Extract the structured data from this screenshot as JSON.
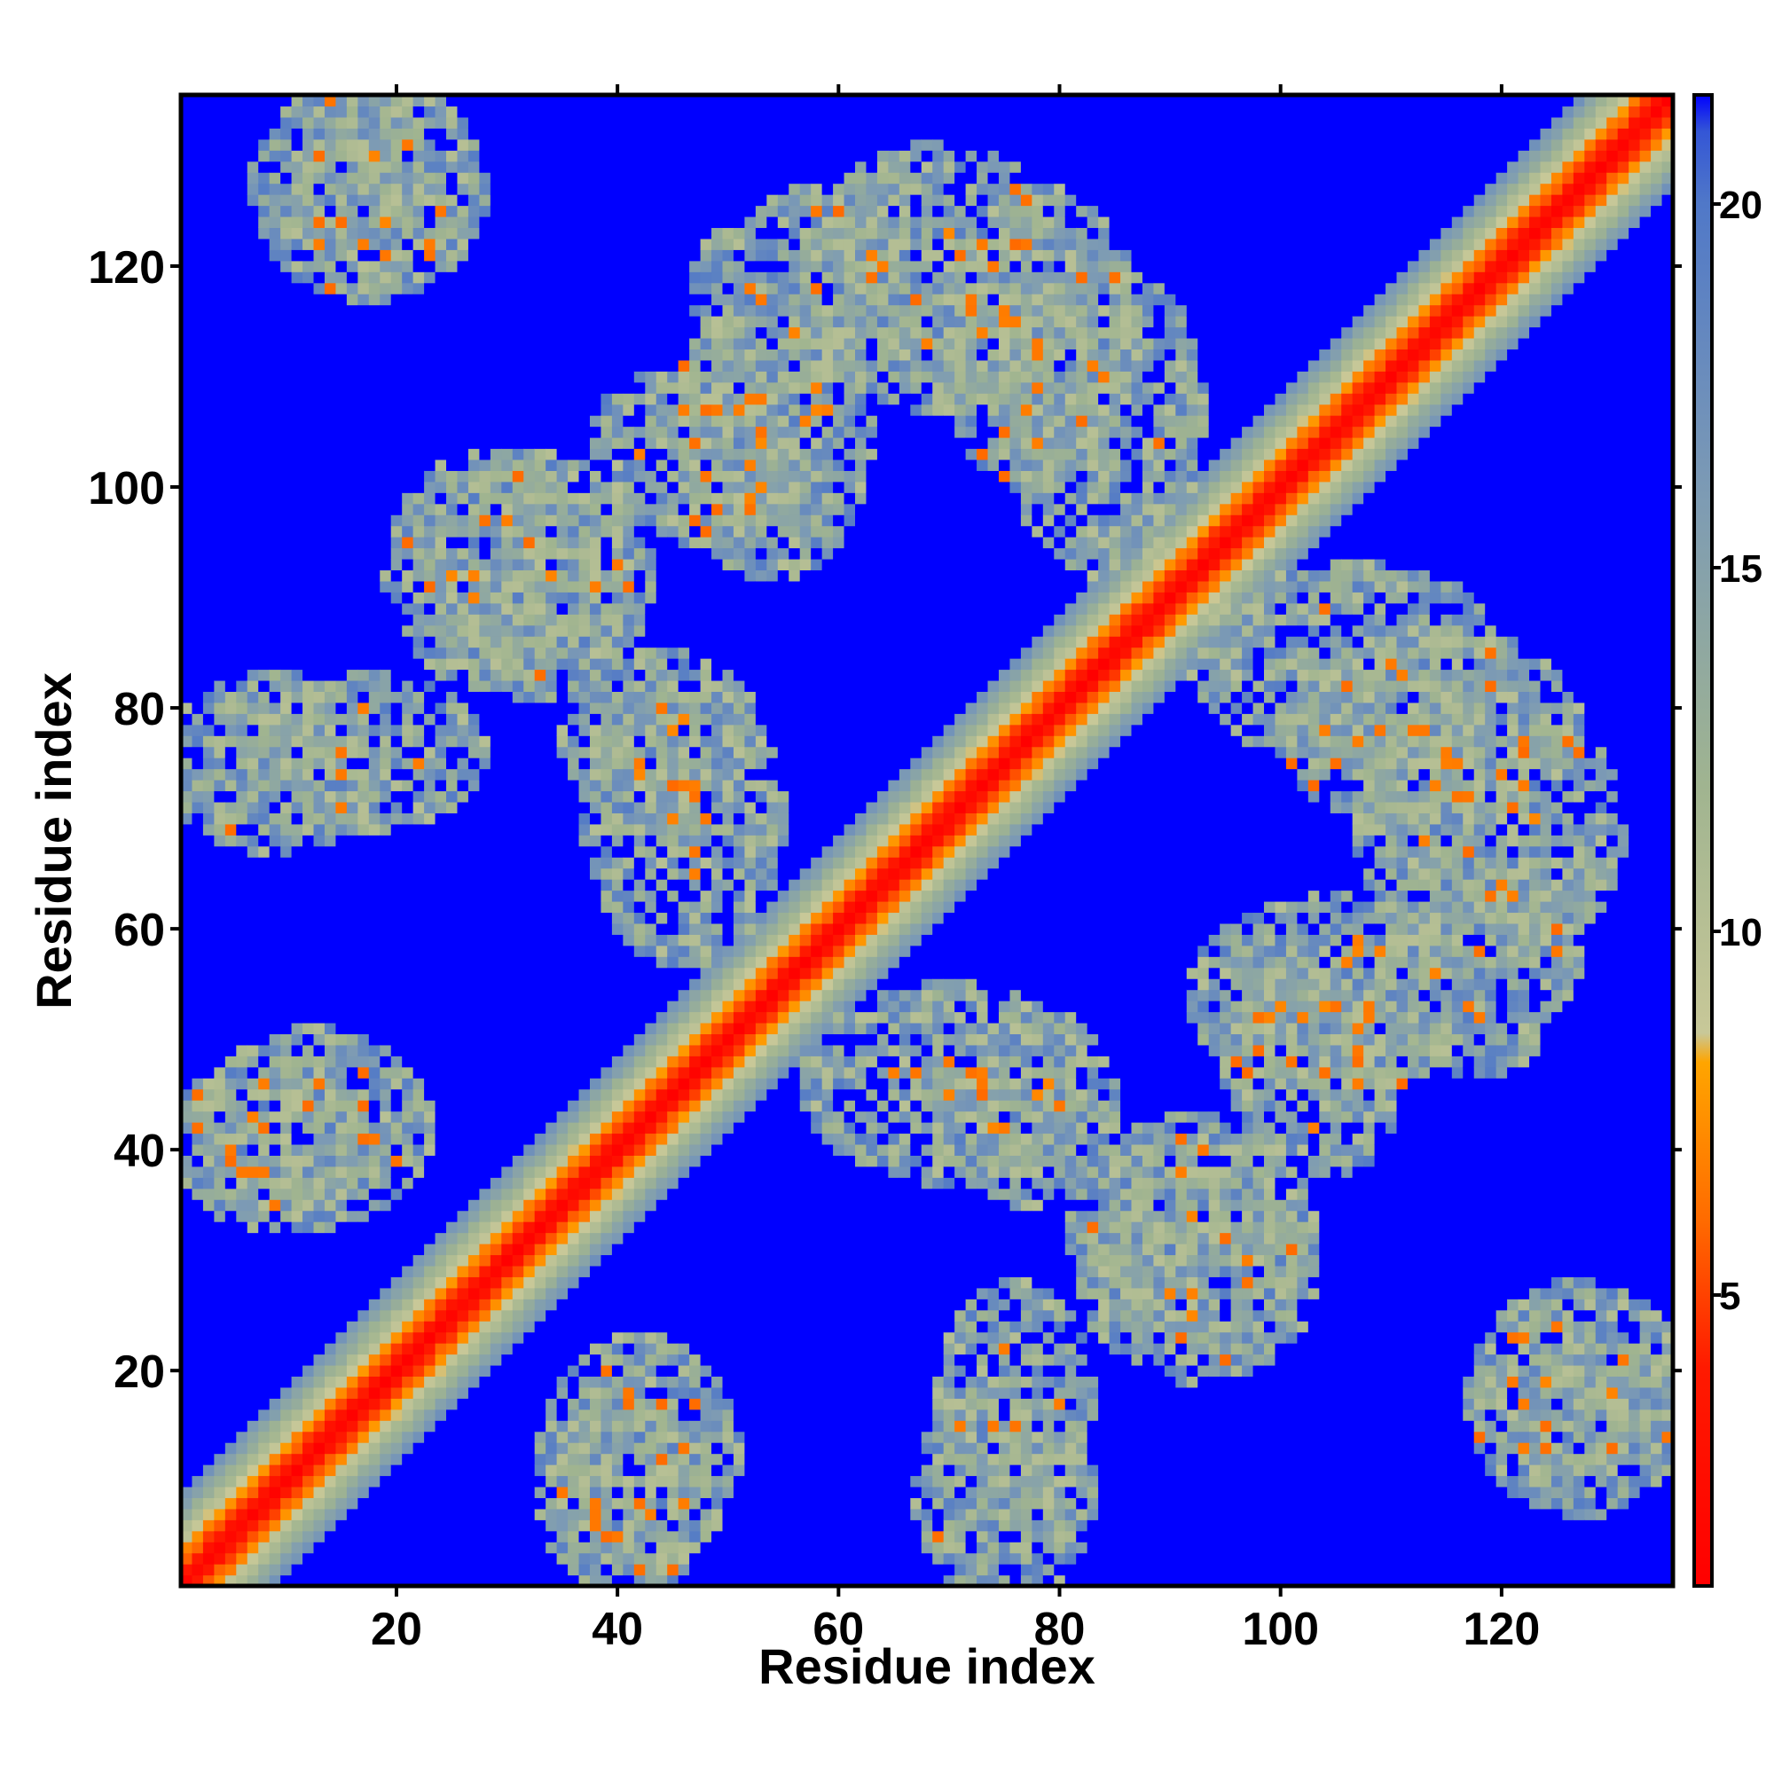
{
  "chart_data": {
    "type": "heatmap",
    "title": "",
    "xlabel": "Residue index",
    "ylabel": "Residue index",
    "n_residues": 135,
    "xlim": [
      0.5,
      135.5
    ],
    "ylim": [
      0.5,
      135.5
    ],
    "x_ticks": [
      20,
      40,
      60,
      80,
      100,
      120
    ],
    "y_ticks": [
      20,
      40,
      60,
      80,
      100,
      120
    ],
    "grid": false,
    "legend": "colorbar right",
    "colorbar": {
      "range": [
        1,
        21.5
      ],
      "ticks": [
        5,
        10,
        15,
        20
      ],
      "colorscale": [
        {
          "value": 1,
          "color": "#ff0000"
        },
        {
          "value": 4,
          "color": "#ff1a00"
        },
        {
          "value": 6,
          "color": "#ff6a00"
        },
        {
          "value": 8.2,
          "color": "#ffa500"
        },
        {
          "value": 8.6,
          "color": "#c8c898"
        },
        {
          "value": 12,
          "color": "#a0b490"
        },
        {
          "value": 16,
          "color": "#7d9bb4"
        },
        {
          "value": 20,
          "color": "#5078c8"
        },
        {
          "value": 21,
          "color": "#3456d6"
        },
        {
          "value": 21.5,
          "color": "#0000ff"
        }
      ]
    },
    "background_value": 21.5,
    "background_color": "#0000ff",
    "diagonal_band": {
      "center_value": 1.5,
      "growth_per_residue": 1.9,
      "band_limit": 18
    },
    "contact_blocks": [
      {
        "x": [
          14,
          20
        ],
        "y": [
          120,
          135
        ],
        "type": "antiparallel"
      },
      {
        "x": [
          2,
          16
        ],
        "y": [
          70,
          80
        ],
        "type": "antiparallel"
      },
      {
        "x": [
          3,
          14
        ],
        "y": [
          36,
          46
        ],
        "type": "antiparallel"
      },
      {
        "x": [
          22,
          35
        ],
        "y": [
          85,
          100
        ],
        "type": "antiparallel"
      },
      {
        "x": [
          36,
          48
        ],
        "y": [
          5,
          20
        ],
        "type": "antiparallel"
      },
      {
        "x": [
          40,
          52
        ],
        "y": [
          60,
          80
        ],
        "type": "antiparallel"
      },
      {
        "x": [
          48,
          60
        ],
        "y": [
          95,
          115
        ],
        "type": "antiparallel"
      },
      {
        "x": [
          60,
          78
        ],
        "y": [
          110,
          128
        ],
        "type": "antiparallel"
      },
      {
        "x": [
          72,
          82
        ],
        "y": [
          38,
          50
        ],
        "type": "antiparallel"
      },
      {
        "x": [
          72,
          80
        ],
        "y": [
          10,
          25
        ],
        "type": "antiparallel"
      },
      {
        "x": [
          78,
          90
        ],
        "y": [
          95,
          118
        ],
        "type": "antiparallel"
      },
      {
        "x": [
          84,
          100
        ],
        "y": [
          25,
          40
        ],
        "type": "antiparallel"
      },
      {
        "x": [
          98,
          108
        ],
        "y": [
          40,
          55
        ],
        "type": "antiparallel"
      },
      {
        "x": [
          103,
          124
        ],
        "y": [
          72,
          84
        ],
        "type": "antiparallel"
      },
      {
        "x": [
          112,
          124
        ],
        "y": [
          50,
          65
        ],
        "type": "antiparallel"
      },
      {
        "x": [
          120,
          134
        ],
        "y": [
          10,
          25
        ],
        "type": "antiparallel"
      }
    ]
  }
}
